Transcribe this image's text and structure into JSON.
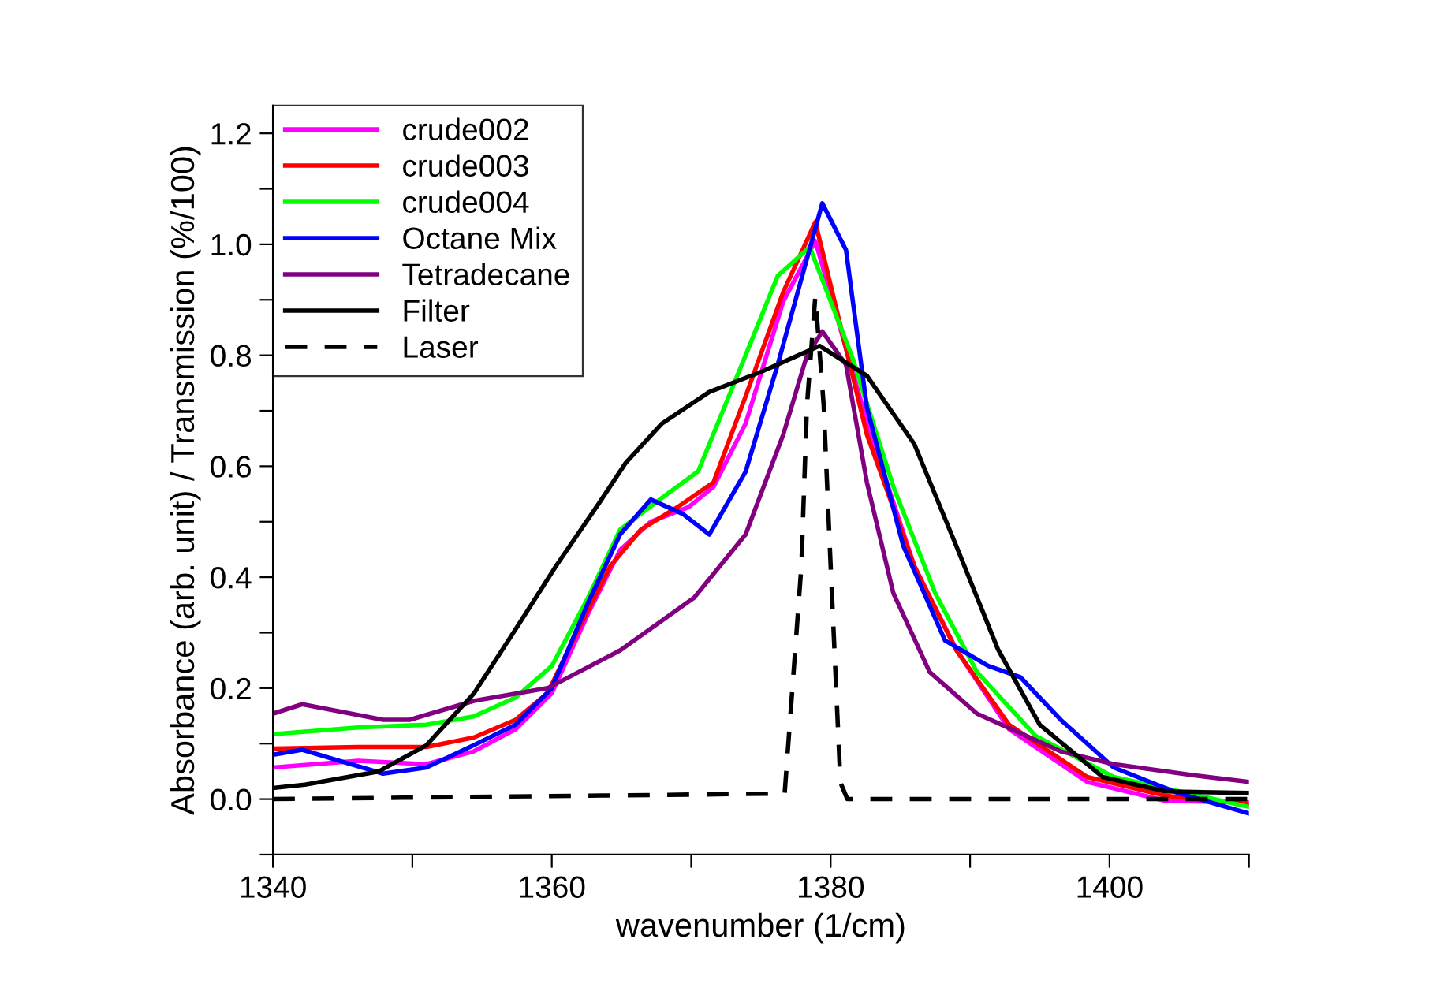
{
  "chart_data": {
    "type": "line",
    "xlabel": "wavenumber (1/cm)",
    "ylabel": "Absorbance (arb. unit) / Transmission (%/100)",
    "xlim": [
      1340,
      1410
    ],
    "xticks": [
      1340,
      {
        "value": 1350,
        "label": null
      },
      1360,
      {
        "value": 1370,
        "label": null
      },
      1380,
      {
        "value": 1390,
        "label": null
      },
      1400,
      {
        "value": 1410,
        "label": null
      }
    ],
    "ylim": [
      -0.1,
      1.25
    ],
    "yticks": [
      {
        "value": -0.1,
        "label": null
      },
      {
        "value": 0,
        "label": "0.0"
      },
      {
        "value": 0.1,
        "label": null
      },
      0.2,
      {
        "value": 0.3,
        "label": null
      },
      0.4,
      {
        "value": 0.5,
        "label": null
      },
      0.6,
      {
        "value": 0.7,
        "label": null
      },
      0.8,
      {
        "value": 0.9,
        "label": null
      },
      {
        "value": 1.0,
        "label": "1.0"
      },
      {
        "value": 1.1,
        "label": null
      },
      1.2
    ],
    "grid": false,
    "legend": "top left",
    "marker": "none",
    "series": [
      {
        "name": "crude002",
        "color": "#ff00ff",
        "x": [
          1340,
          1346.1,
          1351,
          1354.4,
          1357.4,
          1360,
          1362.6,
          1364.9,
          1367.1,
          1369.8,
          1371.6,
          1373.9,
          1376.6,
          1378.9,
          1382.6,
          1386,
          1389,
          1392.8,
          1398.4,
          1404,
          1410
        ],
        "values": [
          0.057,
          0.069,
          0.063,
          0.086,
          0.126,
          0.191,
          0.334,
          0.449,
          0.5,
          0.526,
          0.563,
          0.677,
          0.897,
          1.006,
          0.68,
          0.42,
          0.27,
          0.126,
          0.031,
          -0.003,
          -0.006
        ]
      },
      {
        "name": "crude003",
        "color": "#ff0000",
        "x": [
          1340,
          1346.1,
          1351,
          1354.4,
          1357.4,
          1359.7,
          1361.9,
          1364.2,
          1366.4,
          1369,
          1371.6,
          1373.9,
          1376.6,
          1378.9,
          1382.6,
          1386,
          1389,
          1392.8,
          1398.4,
          1404,
          1410
        ],
        "values": [
          0.091,
          0.094,
          0.094,
          0.111,
          0.143,
          0.191,
          0.306,
          0.42,
          0.486,
          0.526,
          0.571,
          0.726,
          0.914,
          1.04,
          0.657,
          0.42,
          0.269,
          0.134,
          0.04,
          0.006,
          -0.009
        ]
      },
      {
        "name": "crude004",
        "color": "#00ff00",
        "x": [
          1340,
          1346.1,
          1351,
          1354.4,
          1357.4,
          1360,
          1362.6,
          1364.9,
          1367.9,
          1370.5,
          1373.9,
          1376.2,
          1378.5,
          1381.5,
          1384.5,
          1387.5,
          1390.5,
          1394.7,
          1400.3,
          1410
        ],
        "values": [
          0.117,
          0.129,
          0.134,
          0.149,
          0.183,
          0.24,
          0.363,
          0.486,
          0.543,
          0.591,
          0.8,
          0.943,
          0.995,
          0.8,
          0.563,
          0.371,
          0.229,
          0.114,
          0.04,
          -0.014
        ]
      },
      {
        "name": "Octane Mix",
        "color": "#0000ff",
        "x": [
          1340,
          1342.1,
          1344.5,
          1347.9,
          1351,
          1354.4,
          1357.4,
          1360,
          1362.6,
          1364.9,
          1367.1,
          1369.4,
          1371.3,
          1373.9,
          1376.2,
          1379.4,
          1381.1,
          1382.6,
          1385.2,
          1388.2,
          1391.3,
          1393.6,
          1396.5,
          1400.3,
          1404.9,
          1410
        ],
        "values": [
          0.08,
          0.089,
          0.071,
          0.046,
          0.057,
          0.097,
          0.134,
          0.2,
          0.354,
          0.477,
          0.54,
          0.514,
          0.477,
          0.59,
          0.783,
          1.074,
          0.99,
          0.706,
          0.457,
          0.286,
          0.24,
          0.22,
          0.143,
          0.057,
          0.011,
          -0.026
        ]
      },
      {
        "name": "Tetradecane",
        "color": "#800080",
        "x": [
          1340,
          1342.1,
          1347.9,
          1349.8,
          1354.4,
          1359.7,
          1364.9,
          1370.2,
          1373.9,
          1376.6,
          1378.3,
          1379.4,
          1381.1,
          1382.6,
          1384.5,
          1387.1,
          1390.5,
          1396.5,
          1400.3,
          1406,
          1410
        ],
        "values": [
          0.154,
          0.171,
          0.143,
          0.143,
          0.177,
          0.2,
          0.268,
          0.363,
          0.477,
          0.657,
          0.8,
          0.843,
          0.783,
          0.571,
          0.371,
          0.229,
          0.154,
          0.086,
          0.063,
          0.043,
          0.031
        ]
      },
      {
        "name": "Filter",
        "color": "#000000",
        "x": [
          1340,
          1342.3,
          1347.6,
          1351,
          1354.4,
          1357.4,
          1360.3,
          1363.4,
          1365.3,
          1367.9,
          1371.3,
          1375,
          1379.2,
          1382.6,
          1386,
          1389,
          1392,
          1395,
          1399.5,
          1404,
          1410
        ],
        "values": [
          0.02,
          0.026,
          0.05,
          0.097,
          0.19,
          0.306,
          0.42,
          0.534,
          0.606,
          0.677,
          0.734,
          0.77,
          0.817,
          0.763,
          0.64,
          0.457,
          0.27,
          0.134,
          0.04,
          0.014,
          0.011
        ]
      },
      {
        "name": "Laser",
        "color": "#000000",
        "line_style": "dashed",
        "x": [
          1340,
          1376.7,
          1377.9,
          1378.3,
          1378.9,
          1379.5,
          1380.0,
          1380.7,
          1381.2,
          1410
        ],
        "values": [
          0,
          0.01,
          0.42,
          0.71,
          0.906,
          0.71,
          0.42,
          0.03,
          0,
          0
        ]
      }
    ]
  }
}
